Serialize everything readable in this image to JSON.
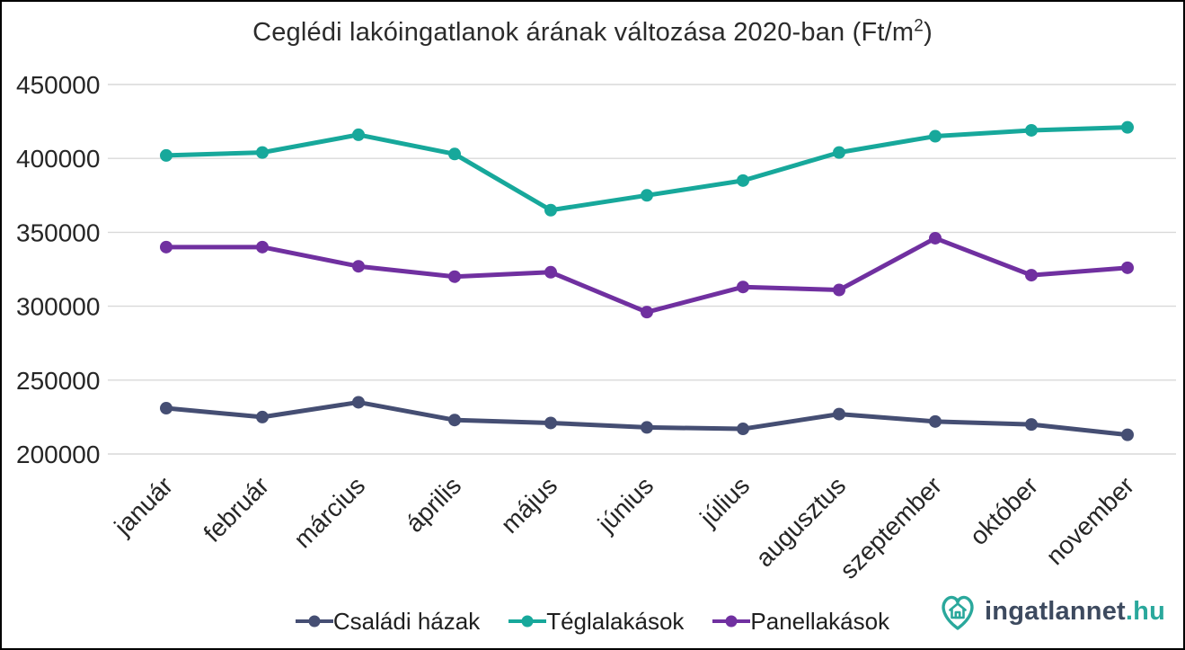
{
  "title": {
    "main": "Ceglédi lakóingatlanok árának változása 2020-ban (Ft/m",
    "sup": "2",
    "tail": ")"
  },
  "chart_data": {
    "type": "line",
    "title": "Ceglédi lakóingatlanok árának változása 2020-ban (Ft/m²)",
    "categories": [
      "január",
      "február",
      "március",
      "április",
      "május",
      "június",
      "július",
      "augusztus",
      "szeptember",
      "október",
      "november"
    ],
    "series": [
      {
        "name": "Családi házak",
        "color": "#454e73",
        "values": [
          231000,
          225000,
          235000,
          223000,
          221000,
          218000,
          217000,
          227000,
          222000,
          220000,
          213000
        ]
      },
      {
        "name": "Téglalakások",
        "color": "#17a89b",
        "values": [
          402000,
          404000,
          416000,
          403000,
          365000,
          375000,
          385000,
          404000,
          415000,
          419000,
          421000
        ]
      },
      {
        "name": "Panellakások",
        "color": "#7030a0",
        "values": [
          340000,
          340000,
          327000,
          320000,
          323000,
          296000,
          313000,
          311000,
          346000,
          321000,
          326000
        ]
      }
    ],
    "ylim": [
      200000,
      450000
    ],
    "y_ticks": [
      450000,
      400000,
      350000,
      300000,
      250000,
      200000
    ],
    "xlabel": "",
    "ylabel": "",
    "grid": "horizontal-only",
    "legend_position": "bottom-center"
  },
  "colors": {
    "gridline": "#d9d9d9",
    "axis_text": "#262626",
    "title_text": "#2b2b2b",
    "logo_navy": "#3d4a5f",
    "logo_teal": "#2aa89c"
  },
  "logo": {
    "name": "ingatlannet",
    "tld": ".hu"
  }
}
